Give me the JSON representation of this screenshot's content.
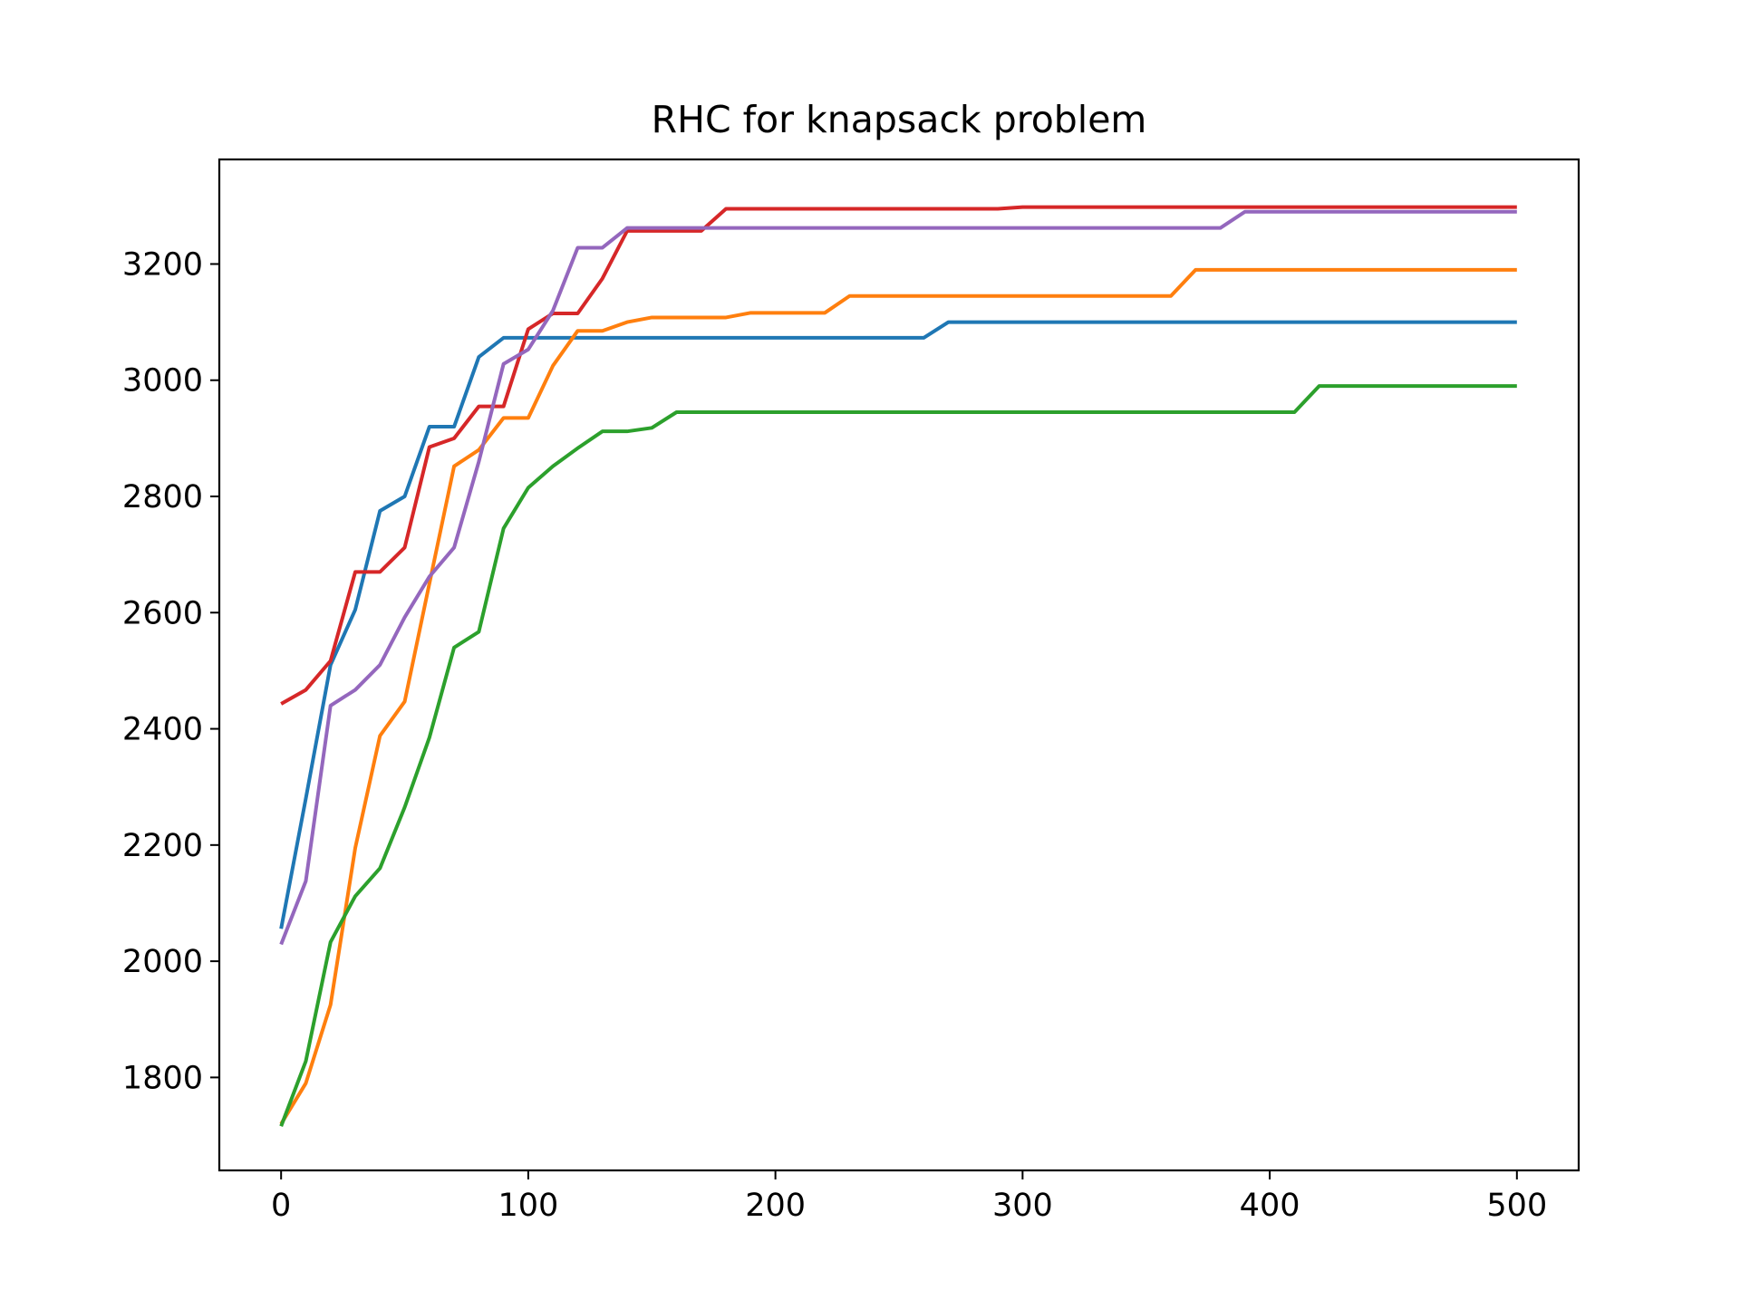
{
  "chart_data": {
    "type": "line",
    "title": "RHC for knapsack problem",
    "xlabel": "",
    "ylabel": "",
    "xlim": [
      -25,
      525
    ],
    "ylim": [
      1640,
      3380
    ],
    "xticks": [
      0,
      100,
      200,
      300,
      400,
      500
    ],
    "yticks": [
      1800,
      2000,
      2200,
      2400,
      2600,
      2800,
      3000,
      3200
    ],
    "grid": false,
    "x": [
      0,
      10,
      20,
      30,
      40,
      50,
      60,
      70,
      80,
      90,
      100,
      110,
      120,
      130,
      140,
      150,
      160,
      170,
      180,
      190,
      200,
      210,
      220,
      230,
      240,
      250,
      260,
      270,
      280,
      290,
      300,
      310,
      320,
      330,
      340,
      350,
      360,
      370,
      380,
      390,
      400,
      410,
      420,
      430,
      440,
      450,
      460,
      470,
      480,
      490,
      500
    ],
    "series": [
      {
        "color": "#1f77b4",
        "values": [
          2056,
          2280,
          2510,
          2605,
          2775,
          2800,
          2920,
          2920,
          3040,
          3073,
          3073,
          3073,
          3073,
          3073,
          3073,
          3073,
          3073,
          3073,
          3073,
          3073,
          3073,
          3073,
          3073,
          3073,
          3073,
          3073,
          3073,
          3100,
          3100,
          3100,
          3100,
          3100,
          3100,
          3100,
          3100,
          3100,
          3100,
          3100,
          3100,
          3100,
          3100,
          3100,
          3100,
          3100,
          3100,
          3100,
          3100,
          3100,
          3100,
          3100,
          3100
        ]
      },
      {
        "color": "#ff7f0e",
        "values": [
          1720,
          1790,
          1925,
          2195,
          2388,
          2447,
          2650,
          2852,
          2880,
          2935,
          2935,
          3025,
          3085,
          3085,
          3100,
          3108,
          3108,
          3108,
          3108,
          3116,
          3116,
          3116,
          3116,
          3145,
          3145,
          3145,
          3145,
          3145,
          3145,
          3145,
          3145,
          3145,
          3145,
          3145,
          3145,
          3145,
          3145,
          3190,
          3190,
          3190,
          3190,
          3190,
          3190,
          3190,
          3190,
          3190,
          3190,
          3190,
          3190,
          3190,
          3190
        ]
      },
      {
        "color": "#2ca02c",
        "values": [
          1716,
          1828,
          2033,
          2112,
          2160,
          2265,
          2385,
          2540,
          2567,
          2745,
          2815,
          2852,
          2883,
          2912,
          2912,
          2918,
          2945,
          2945,
          2945,
          2945,
          2945,
          2945,
          2945,
          2945,
          2945,
          2945,
          2945,
          2945,
          2945,
          2945,
          2945,
          2945,
          2945,
          2945,
          2945,
          2945,
          2945,
          2945,
          2945,
          2945,
          2945,
          2945,
          2990,
          2990,
          2990,
          2990,
          2990,
          2990,
          2990,
          2990,
          2990
        ]
      },
      {
        "color": "#d62728",
        "values": [
          2443,
          2467,
          2517,
          2670,
          2670,
          2712,
          2885,
          2900,
          2955,
          2955,
          3088,
          3115,
          3115,
          3175,
          3257,
          3257,
          3257,
          3257,
          3295,
          3295,
          3295,
          3295,
          3295,
          3295,
          3295,
          3295,
          3295,
          3295,
          3295,
          3295,
          3298,
          3298,
          3298,
          3298,
          3298,
          3298,
          3298,
          3298,
          3298,
          3298,
          3298,
          3298,
          3298,
          3298,
          3298,
          3298,
          3298,
          3298,
          3298,
          3298,
          3298
        ]
      },
      {
        "color": "#9467bd",
        "values": [
          2029,
          2138,
          2440,
          2467,
          2510,
          2592,
          2662,
          2712,
          2860,
          3028,
          3053,
          3120,
          3228,
          3228,
          3262,
          3262,
          3262,
          3262,
          3262,
          3262,
          3262,
          3262,
          3262,
          3262,
          3262,
          3262,
          3262,
          3262,
          3262,
          3262,
          3262,
          3262,
          3262,
          3262,
          3262,
          3262,
          3262,
          3262,
          3262,
          3290,
          3290,
          3290,
          3290,
          3290,
          3290,
          3290,
          3290,
          3290,
          3290,
          3290,
          3290
        ]
      }
    ]
  }
}
